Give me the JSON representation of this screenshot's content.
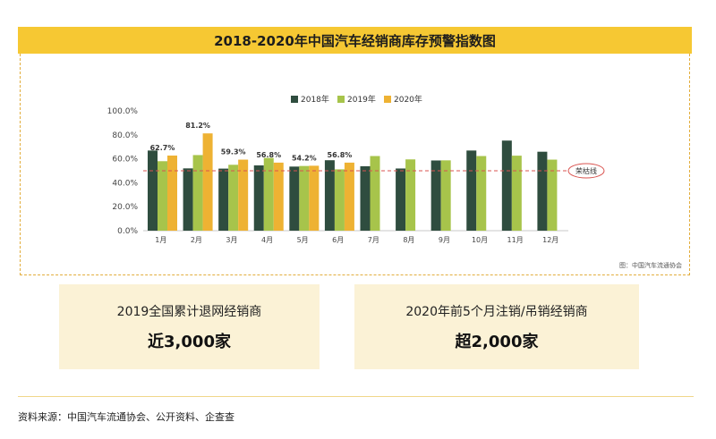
{
  "title": "2018-2020年中国汽车经销商库存预警指数图",
  "chart_data": {
    "type": "bar",
    "categories": [
      "1月",
      "2月",
      "3月",
      "4月",
      "5月",
      "6月",
      "7月",
      "8月",
      "9月",
      "10月",
      "11月",
      "12月"
    ],
    "series": [
      {
        "name": "2018年",
        "color": "#2f4d3f",
        "values": [
          66.9,
          52.0,
          51.8,
          54.5,
          53.5,
          58.8,
          53.8,
          51.9,
          58.6,
          66.9,
          75.2,
          65.9
        ]
      },
      {
        "name": "2019年",
        "color": "#a7c44b",
        "values": [
          58.0,
          63.1,
          55.0,
          60.7,
          54.0,
          51.2,
          62.3,
          59.5,
          58.7,
          62.3,
          62.6,
          59.3
        ]
      },
      {
        "name": "2020年",
        "color": "#eeb233",
        "values": [
          62.7,
          81.2,
          59.3,
          56.8,
          54.2,
          56.8,
          null,
          null,
          null,
          null,
          null,
          null
        ]
      }
    ],
    "data_labels": [
      "62.7%",
      "81.2%",
      "59.3%",
      "56.8%",
      "54.2%",
      "56.8%"
    ],
    "yticks": [
      "0.0%",
      "20.0%",
      "40.0%",
      "60.0%",
      "80.0%",
      "100.0%"
    ],
    "ylim": [
      0,
      100
    ],
    "reference_line": {
      "value": 50,
      "label": "荣枯线",
      "color": "#d9534f"
    },
    "legend_position": "top"
  },
  "chart_source": "图：中国汽车流通协会",
  "cards": [
    {
      "label": "2019全国累计退网经销商",
      "value": "近3,000家"
    },
    {
      "label": "2020年前5个月注销/吊销经销商",
      "value": "超2,000家"
    }
  ],
  "footer": "资料来源：中国汽车流通协会、公开资料、企查查"
}
